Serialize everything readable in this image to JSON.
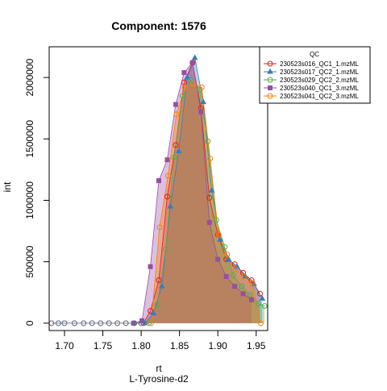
{
  "chart_data": {
    "type": "area",
    "title": "Component: 1576",
    "xlabel": "rt",
    "xsublabel": "L-Tyrosine-d2",
    "ylabel": "int",
    "xlim": [
      1.68,
      1.965
    ],
    "ylim": [
      -60000,
      2250000
    ],
    "x_ticks": [
      1.7,
      1.75,
      1.8,
      1.85,
      1.9,
      1.95
    ],
    "x_tick_labels": [
      "1.70",
      "1.75",
      "1.80",
      "1.85",
      "1.90",
      "1.95"
    ],
    "y_ticks": [
      0,
      500000,
      1000000,
      1500000,
      2000000
    ],
    "y_tick_labels": [
      "0",
      "500000",
      "1000000",
      "1500000",
      "2000000"
    ],
    "legend": {
      "title": "QC",
      "position": "top-right"
    },
    "series": [
      {
        "name": "230523s016_QC1_1.mzML",
        "color": "#e41a1c",
        "marker": "circle",
        "x": [
          1.803,
          1.812,
          1.823,
          1.834,
          1.845,
          1.856,
          1.867,
          1.878,
          1.889,
          1.9,
          1.911,
          1.922,
          1.933,
          1.944,
          1.955
        ],
        "y": [
          0,
          100000,
          350000,
          1030000,
          1450000,
          1960000,
          2120000,
          1750000,
          1020000,
          720000,
          520000,
          480000,
          410000,
          350000,
          240000
        ]
      },
      {
        "name": "230523s017_QC2_1.mzML",
        "color": "#377eb8",
        "marker": "triangle",
        "x": [
          1.805,
          1.816,
          1.827,
          1.838,
          1.849,
          1.86,
          1.87,
          1.881,
          1.892,
          1.903,
          1.914,
          1.925,
          1.936,
          1.947,
          1.958
        ],
        "y": [
          0,
          80000,
          300000,
          950000,
          1400000,
          2000000,
          2160000,
          1800000,
          1080000,
          680000,
          520000,
          460000,
          380000,
          320000,
          200000
        ]
      },
      {
        "name": "230523s029_QC2_2.mzML",
        "color": "#4daf4a",
        "marker": "circle",
        "x": [
          1.81,
          1.821,
          1.832,
          1.843,
          1.854,
          1.865,
          1.876,
          1.887,
          1.898,
          1.909,
          1.92,
          1.931,
          1.942,
          1.953,
          1.961
        ],
        "y": [
          0,
          150000,
          600000,
          1350000,
          1850000,
          1980000,
          1900000,
          1480000,
          840000,
          620000,
          390000,
          300000,
          230000,
          160000,
          140000
        ]
      },
      {
        "name": "230523s040_QC1_3.mzML",
        "color": "#984ea3",
        "marker": "square",
        "x": [
          1.79,
          1.801,
          1.812,
          1.823,
          1.834,
          1.845,
          1.856,
          1.867,
          1.878,
          1.889,
          1.9,
          1.911,
          1.922,
          1.933,
          1.944
        ],
        "y": [
          0,
          20000,
          460000,
          1160000,
          1330000,
          1780000,
          2040000,
          2120000,
          1720000,
          820000,
          520000,
          380000,
          300000,
          240000,
          190000
        ]
      },
      {
        "name": "230523s041_QC2_3.mzML",
        "color": "#ff7f00",
        "marker": "circle",
        "x": [
          1.813,
          1.824,
          1.835,
          1.846,
          1.857,
          1.868,
          1.879,
          1.89,
          1.901,
          1.912,
          1.923,
          1.934,
          1.945,
          1.956
        ],
        "y": [
          0,
          780000,
          1200000,
          1700000,
          1920000,
          1950000,
          1920000,
          1340000,
          720000,
          560000,
          440000,
          380000,
          330000,
          0
        ]
      }
    ]
  },
  "baseline": {
    "x": [
      1.683,
      1.692,
      1.7,
      1.713,
      1.725,
      1.736,
      1.747,
      1.758,
      1.769,
      1.78,
      1.791,
      1.8
    ],
    "y": [
      0,
      0,
      0,
      0,
      0,
      0,
      0,
      0,
      0,
      0,
      0,
      0
    ]
  }
}
